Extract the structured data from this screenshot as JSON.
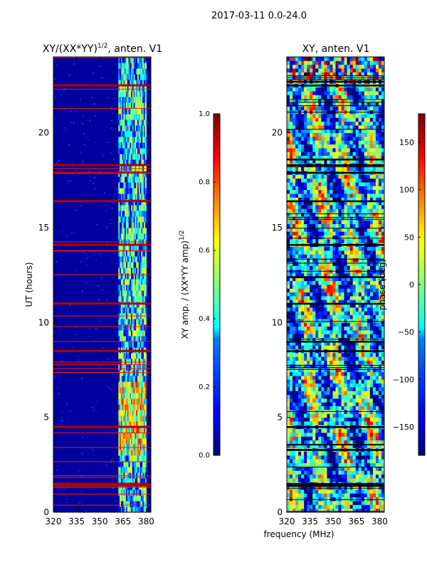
{
  "figure_title": "2017-03-11 0.0-24.0",
  "chart_data": [
    {
      "type": "heatmap",
      "title_main": "XY/(XX*YY)",
      "title_sup": "1/2",
      "title_rest": ", anten. V1",
      "xlabel": "",
      "ylabel": "UT (hours)",
      "xlim": [
        320,
        383
      ],
      "ylim": [
        0,
        24
      ],
      "x_ticks": [
        320,
        335,
        350,
        365,
        380
      ],
      "y_ticks": [
        0,
        5,
        10,
        15,
        20
      ],
      "colormap": "jet",
      "background_value": 0.05,
      "bright_band_mhz": [
        362,
        380
      ],
      "flagged_rows_ut": [
        1.4,
        1.5,
        4.5,
        8.5,
        11.0,
        14.1,
        16.4,
        17.9,
        18.3,
        22.5
      ],
      "colorbar": {
        "label_main": "XY amp. / (XX*YY amp)",
        "label_sup": "1/2",
        "range": [
          0.0,
          1.0
        ],
        "ticks": [
          "0.0",
          "0.2",
          "0.4",
          "0.6",
          "0.8",
          "1.0"
        ]
      }
    },
    {
      "type": "heatmap",
      "title": "XY, anten. V1",
      "xlabel": "frequency (MHz)",
      "ylabel": "",
      "xlim": [
        320,
        383
      ],
      "ylim": [
        0,
        24
      ],
      "x_ticks": [
        320,
        335,
        350,
        365,
        380
      ],
      "y_ticks": [
        0,
        5,
        10,
        15,
        20
      ],
      "colormap": "jet",
      "flagged_rows_ut": [
        1.4,
        1.5,
        3.3,
        4.5,
        8.5,
        9.0,
        11.0,
        12.4,
        14.1,
        16.4,
        17.9,
        18.3,
        18.6,
        22.5,
        22.7
      ],
      "colorbar": {
        "label": "phase (deg)",
        "range": [
          -180,
          180
        ],
        "ticks": [
          "−150",
          "−100",
          "−50",
          "0",
          "50",
          "100",
          "150"
        ]
      }
    }
  ]
}
